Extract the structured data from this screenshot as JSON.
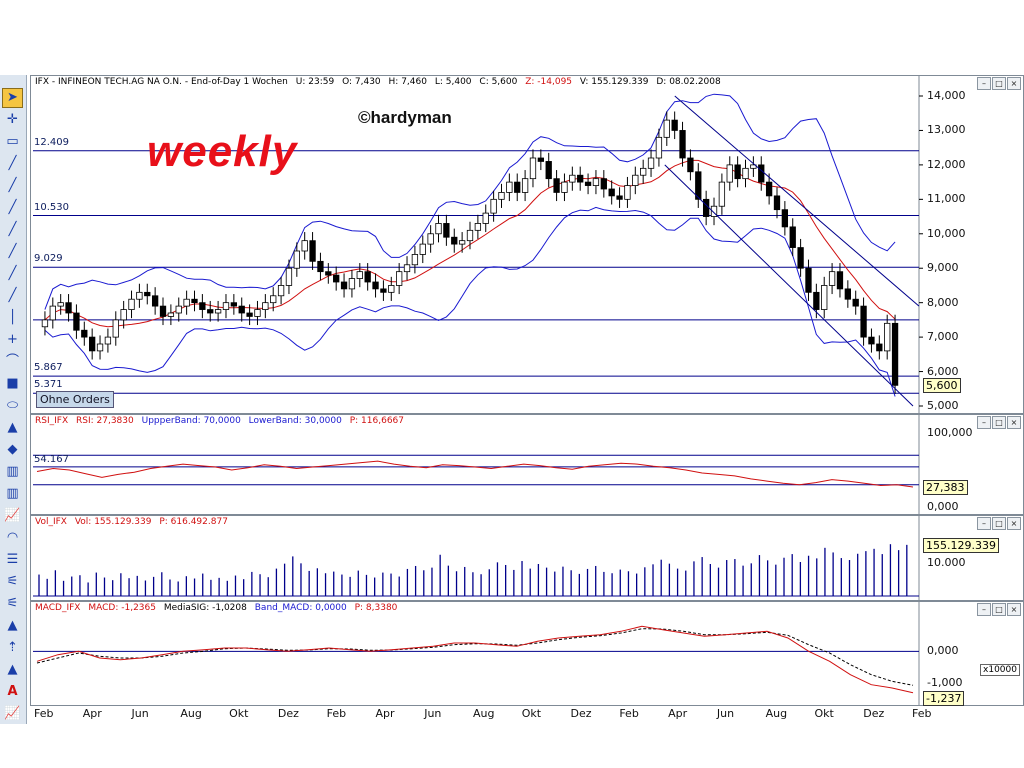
{
  "price_header": {
    "symbol": "IFX - INFINEON TECH.AG NA O.N. - End-of-Day 1 Wochen",
    "time": "U: 23:59",
    "open": "O: 7,430",
    "high": "H: 7,460",
    "low": "L: 5,400",
    "close": "C: 5,600",
    "change": "Z: -14,095",
    "volume": "V: 155.129.339",
    "date": "D: 08.02.2008"
  },
  "rsi_header": {
    "name": "RSI_IFX",
    "rsi": "RSI: 27,3830",
    "upper": "UppperBand: 70,0000",
    "lower": "LowerBand: 30,0000",
    "p": "P: 116,6667"
  },
  "vol_header": {
    "name": "Vol_IFX",
    "vol": "Vol: 155.129.339",
    "p": "P: 616.492.877"
  },
  "macd_header": {
    "name": "MACD_IFX",
    "macd": "MACD: -1,2365",
    "signal": "MediaSIG: -1,0208",
    "band": "Band_MACD: 0,0000",
    "p": "P: 8,3380"
  },
  "watermark": "©hardyman",
  "annotation": "weekly",
  "ohne_orders": "Ohne Orders",
  "level_labels": [
    "12.409",
    "10.530",
    "9.029",
    "5.867",
    "5.371"
  ],
  "price_ticks": [
    "14,000",
    "13,000",
    "12,000",
    "11,000",
    "10,000",
    "9,000",
    "8,000",
    "7,000",
    "6,000",
    "5,000"
  ],
  "rsi_ticks": [
    "100,000",
    "0,000"
  ],
  "vol_ticks": [
    "10.000"
  ],
  "vol_unit": "x10000",
  "macd_ticks": [
    "0,000",
    "-1,000"
  ],
  "last_labels": {
    "price": "5,600",
    "rsi": "27,383",
    "vol": "155.129.339",
    "macd": "-1,237"
  },
  "rsi_mid_label": "54.167",
  "x_axis_labels": [
    "Feb",
    "Apr",
    "Jun",
    "Aug",
    "Okt",
    "Dez",
    "Feb",
    "Apr",
    "Jun",
    "Aug",
    "Okt",
    "Dez",
    "Feb",
    "Apr",
    "Jun",
    "Aug",
    "Okt",
    "Dez",
    "Feb"
  ],
  "colors": {
    "candle_up": "#ffffff",
    "candle_down": "#000000",
    "bollinger": "#1a1ad0",
    "ma": "#d01010",
    "levels": "#00008b",
    "accent_red": "#e8101a"
  },
  "tools": [
    "cursor-icon",
    "crosshair-icon",
    "rect-icon",
    "line-icon",
    "line-icon",
    "line-icon",
    "line-icon",
    "line-icon",
    "line-icon",
    "line-icon",
    "vline-icon",
    "cross-icon",
    "curve-icon",
    "square-icon",
    "ellipse-icon",
    "triangle-icon",
    "diamond-icon",
    "bars-icon",
    "bars-icon",
    "chart-icon",
    "fan-icon",
    "list-icon",
    "ruler-icon",
    "ruler-icon",
    "triangle-icon",
    "arrow-up-icon",
    "triangle-icon",
    "text-icon",
    "chart-icon"
  ],
  "chart_data": [
    {
      "type": "candlestick",
      "title": "IFX - INFINEON TECH.AG NA O.N. - End-of-Day 1 Wochen",
      "x_range": [
        "2006-02",
        "2008-02"
      ],
      "ylim": [
        5.0,
        14.0
      ],
      "horizontal_levels": [
        12.409,
        10.53,
        9.029,
        7.5,
        5.867,
        5.371
      ],
      "series": [
        {
          "name": "close",
          "values": [
            7.5,
            7.9,
            8.0,
            7.7,
            7.2,
            7.0,
            6.6,
            6.8,
            7.0,
            7.5,
            7.8,
            8.1,
            8.3,
            8.2,
            7.9,
            7.6,
            7.7,
            7.9,
            8.1,
            8.0,
            7.8,
            7.7,
            7.8,
            8.0,
            7.9,
            7.7,
            7.6,
            7.8,
            8.0,
            8.2,
            8.5,
            9.0,
            9.5,
            9.8,
            9.2,
            8.9,
            8.8,
            8.6,
            8.4,
            8.7,
            8.9,
            8.6,
            8.4,
            8.3,
            8.5,
            8.9,
            9.1,
            9.4,
            9.7,
            10.0,
            10.3,
            9.9,
            9.7,
            9.8,
            10.1,
            10.3,
            10.6,
            11.0,
            11.2,
            11.5,
            11.2,
            11.6,
            12.2,
            12.1,
            11.6,
            11.2,
            11.5,
            11.7,
            11.5,
            11.4,
            11.6,
            11.3,
            11.1,
            11.0,
            11.4,
            11.7,
            11.9,
            12.2,
            12.8,
            13.3,
            13.0,
            12.2,
            11.8,
            11.0,
            10.5,
            10.8,
            11.5,
            12.0,
            11.6,
            11.9,
            12.0,
            11.5,
            11.1,
            10.7,
            10.2,
            9.6,
            9.0,
            8.3,
            7.8,
            8.5,
            8.9,
            8.4,
            8.1,
            7.9,
            7.0,
            6.8,
            6.6,
            7.4,
            5.6
          ]
        }
      ]
    },
    {
      "type": "line",
      "title": "RSI_IFX",
      "ylim": [
        0,
        100
      ],
      "levels": [
        70,
        54.167,
        30
      ],
      "series": [
        {
          "name": "RSI",
          "values": [
            48,
            52,
            50,
            45,
            40,
            44,
            47,
            52,
            55,
            58,
            56,
            54,
            50,
            53,
            57,
            55,
            52,
            54,
            56,
            58,
            60,
            62,
            58,
            55,
            53,
            57,
            56,
            54,
            52,
            55,
            58,
            56,
            53,
            51,
            55,
            57,
            59,
            58,
            55,
            53,
            50,
            46,
            44,
            42,
            38,
            35,
            32,
            30,
            33,
            37,
            35,
            32,
            29,
            30,
            27
          ]
        }
      ]
    },
    {
      "type": "bar",
      "title": "Vol_IFX",
      "ylim": [
        0,
        20000
      ],
      "unit": "x10000",
      "series": [
        {
          "name": "Vol",
          "values": [
            6500,
            5200,
            7800,
            4600,
            5900,
            6300,
            4100,
            7100,
            5600,
            4800,
            6900,
            5400,
            6100,
            4700,
            5800,
            7200,
            5000,
            4400,
            6000,
            5300,
            6800,
            4900,
            5500,
            4600,
            6200,
            5100,
            7300,
            6600,
            5700,
            8300,
            9800,
            12000,
            9900,
            7600,
            8400,
            6900,
            7400,
            6500,
            5800,
            7700,
            6400,
            5600,
            7100,
            6800,
            5900,
            8200,
            9100,
            7800,
            8600,
            12500,
            9200,
            7500,
            8800,
            7200,
            6600,
            8100,
            10200,
            9400,
            7900,
            10600,
            8300,
            9700,
            8600,
            7400,
            8900,
            7800,
            6700,
            8200,
            9100,
            7300,
            6900,
            8000,
            7500,
            6800,
            8700,
            9600,
            11000,
            9800,
            8300,
            7700,
            10500,
            11800,
            9700,
            8600,
            10900,
            11200,
            9200,
            9900,
            12400,
            10800,
            9500,
            11600,
            12700,
            10300,
            12200,
            11400,
            14600,
            13200,
            11500,
            10900,
            12800,
            13600,
            14300,
            12700,
            15700,
            13900,
            15500
          ]
        }
      ]
    },
    {
      "type": "line",
      "title": "MACD_IFX",
      "ylim": [
        -1.4,
        1.0
      ],
      "series": [
        {
          "name": "MACD",
          "values": [
            -0.3,
            -0.1,
            0.0,
            -0.2,
            -0.25,
            -0.2,
            -0.1,
            0.0,
            0.05,
            0.1,
            0.1,
            0.05,
            0.0,
            0.05,
            0.1,
            0.05,
            0.0,
            0.05,
            0.1,
            0.15,
            0.25,
            0.25,
            0.2,
            0.15,
            0.3,
            0.4,
            0.45,
            0.5,
            0.6,
            0.75,
            0.65,
            0.55,
            0.45,
            0.5,
            0.55,
            0.6,
            0.4,
            0.0,
            -0.3,
            -0.7,
            -1.0,
            -1.1,
            -1.24
          ]
        },
        {
          "name": "MediaSIG",
          "values": [
            -0.35,
            -0.2,
            -0.05,
            -0.15,
            -0.2,
            -0.2,
            -0.15,
            -0.05,
            0.0,
            0.08,
            0.1,
            0.07,
            0.03,
            0.04,
            0.08,
            0.07,
            0.03,
            0.04,
            0.08,
            0.12,
            0.2,
            0.23,
            0.22,
            0.18,
            0.25,
            0.35,
            0.42,
            0.47,
            0.55,
            0.68,
            0.67,
            0.6,
            0.5,
            0.5,
            0.53,
            0.57,
            0.48,
            0.2,
            -0.05,
            -0.4,
            -0.7,
            -0.9,
            -1.02
          ]
        }
      ]
    }
  ]
}
